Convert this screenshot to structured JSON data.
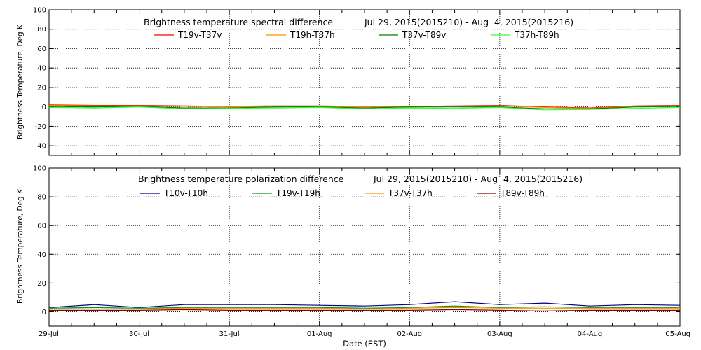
{
  "chart_data": [
    {
      "type": "line",
      "title": "Brightness temperature spectral difference",
      "date_range": "Jul 29, 2015(2015210) - Aug  4, 2015(2015216)",
      "ylabel": "Brightness Temperature, Deg K",
      "xlabel": "",
      "ylim": [
        -50,
        100
      ],
      "yticks": [
        -40,
        -20,
        0,
        20,
        40,
        60,
        80,
        100
      ],
      "x_ticks": [
        "29-Jul",
        "30-Jul",
        "31-Jul",
        "01-Aug",
        "02-Aug",
        "03-Aug",
        "04-Aug",
        "05-Aug"
      ],
      "show_x_tick_labels": false,
      "grid": true,
      "x": [
        "07-29 00:00",
        "07-29 12:00",
        "07-30 00:00",
        "07-30 12:00",
        "07-31 00:00",
        "07-31 12:00",
        "08-01 00:00",
        "08-01 12:00",
        "08-02 00:00",
        "08-02 12:00",
        "08-03 00:00",
        "08-03 12:00",
        "08-04 00:00",
        "08-04 12:00",
        "08-05 00:00"
      ],
      "series": [
        {
          "name": "T19v-T37v",
          "color": "#ff0000",
          "values": [
            2,
            1.5,
            1.5,
            1,
            0.5,
            1,
            1,
            0.5,
            0.5,
            1,
            1.5,
            0,
            -1,
            1,
            1.5
          ]
        },
        {
          "name": "T19h-T37h",
          "color": "#ff8c00",
          "values": [
            1.5,
            1,
            1,
            0.5,
            0,
            0.5,
            0.5,
            0,
            0,
            0.5,
            1,
            -0.5,
            -1.5,
            0.5,
            1
          ]
        },
        {
          "name": "T37v-T89v",
          "color": "#008000",
          "values": [
            0.5,
            0,
            0.5,
            -1,
            -1,
            0,
            0,
            -1,
            0,
            0,
            0,
            -2,
            -2,
            0,
            0.5
          ]
        },
        {
          "name": "T37h-T89h",
          "color": "#33ff33",
          "values": [
            -0.5,
            -1,
            0,
            -2,
            -1.5,
            -1,
            -0.5,
            -2,
            -1,
            -1.5,
            -0.5,
            -3,
            -2.5,
            -1.5,
            -0.5
          ]
        }
      ]
    },
    {
      "type": "line",
      "title": "Brightness temperature polarization difference",
      "date_range": "Jul 29, 2015(2015210) - Aug  4, 2015(2015216)",
      "ylabel": "Brightness Temperature, Deg K",
      "xlabel": "Date (EST)",
      "ylim": [
        -10,
        100
      ],
      "yticks": [
        0,
        20,
        40,
        60,
        80,
        100
      ],
      "x_ticks": [
        "29-Jul",
        "30-Jul",
        "31-Jul",
        "01-Aug",
        "02-Aug",
        "03-Aug",
        "04-Aug",
        "05-Aug"
      ],
      "show_x_tick_labels": true,
      "grid": true,
      "x": [
        "07-29 00:00",
        "07-29 12:00",
        "07-30 00:00",
        "07-30 12:00",
        "07-31 00:00",
        "07-31 12:00",
        "08-01 00:00",
        "08-01 12:00",
        "08-02 00:00",
        "08-02 12:00",
        "08-03 00:00",
        "08-03 12:00",
        "08-04 00:00",
        "08-04 12:00",
        "08-05 00:00"
      ],
      "series": [
        {
          "name": "T10v-T10h",
          "color": "#00008b",
          "values": [
            3,
            5,
            3,
            5,
            5,
            5,
            4.5,
            4,
            5,
            7,
            5,
            6,
            4,
            5,
            4.5
          ]
        },
        {
          "name": "T19v-T19h",
          "color": "#009900",
          "values": [
            2.5,
            3,
            2.5,
            3,
            3,
            3,
            3,
            2.5,
            3,
            4,
            3,
            3.5,
            3,
            3,
            3
          ]
        },
        {
          "name": "T37v-T37h",
          "color": "#ff8c00",
          "values": [
            2,
            2,
            2,
            2.5,
            2.5,
            2.5,
            2.5,
            2,
            2.5,
            3,
            2.5,
            2.5,
            2.5,
            2.5,
            2.5
          ]
        },
        {
          "name": "T89v-T89h",
          "color": "#8b0000",
          "values": [
            1,
            1,
            1,
            1.5,
            1,
            1,
            1,
            1,
            1,
            1.5,
            1,
            0.5,
            1,
            1,
            1
          ]
        }
      ]
    }
  ]
}
